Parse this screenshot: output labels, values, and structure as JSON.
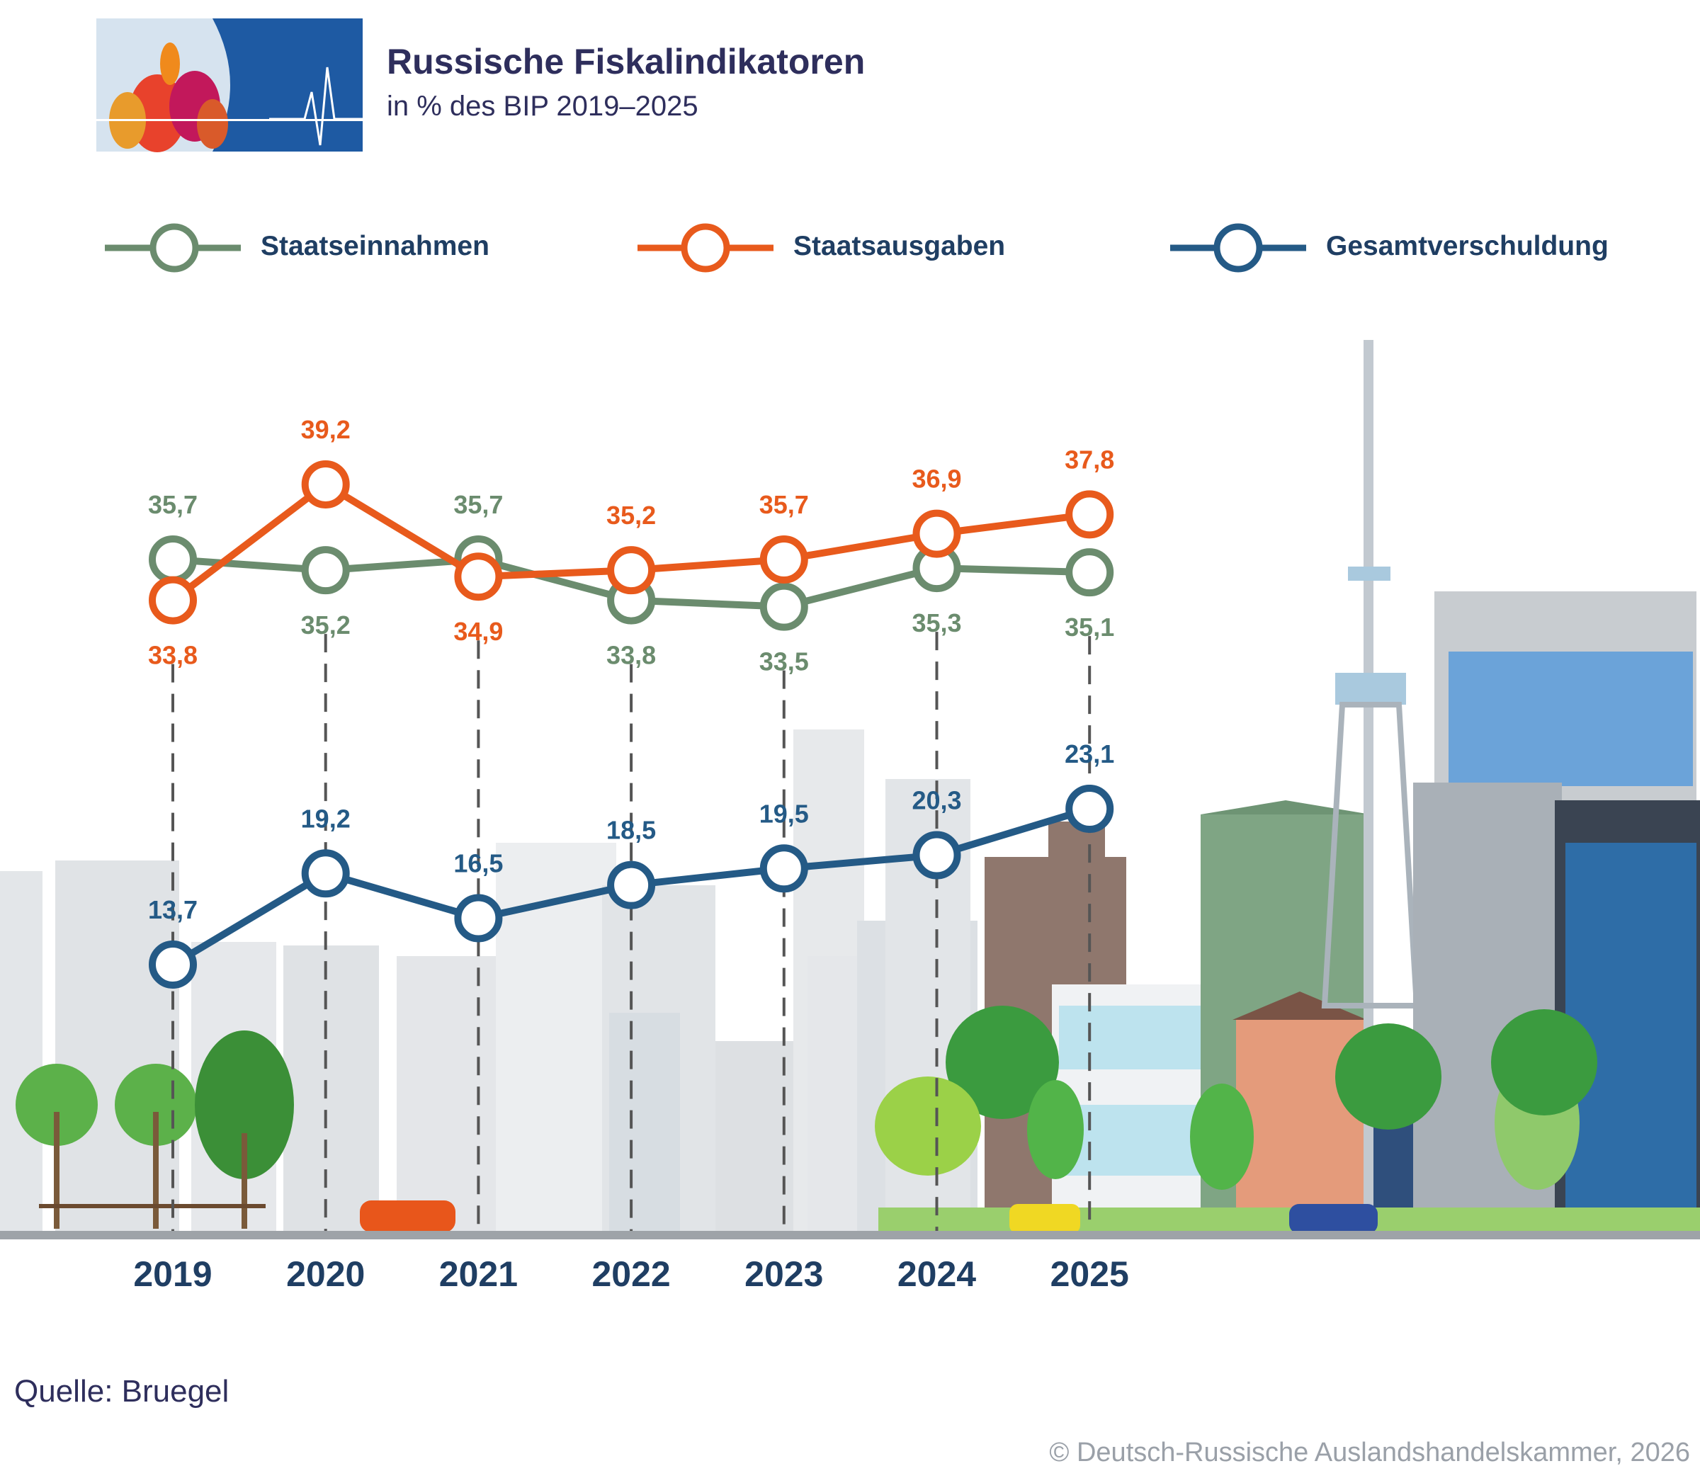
{
  "header": {
    "title": "Russische Fiskalindikatoren",
    "subtitle": "in % des BIP 2019–2025"
  },
  "legend": {
    "revenue_label": "Staatseinnahmen",
    "spending_label": "Staatsausgaben",
    "debt_label": "Gesamtverschuldung"
  },
  "footer": {
    "source": "Quelle: Bruegel",
    "copyright": "© Deutsch-Russische Auslandshandelskammer, 2026"
  },
  "colors": {
    "revenue": "#6b8c6e",
    "spending": "#e85a1c",
    "debt": "#245a86",
    "axis_year": "#1f3e63"
  },
  "chart_data": {
    "type": "line",
    "categories": [
      "2019",
      "2020",
      "2021",
      "2022",
      "2023",
      "2024",
      "2025"
    ],
    "series": [
      {
        "name": "Staatseinnahmen",
        "values": [
          35.7,
          35.2,
          35.7,
          33.8,
          33.5,
          35.3,
          35.1
        ],
        "labels": [
          "35,7",
          "35,2",
          "35,7",
          "33,8",
          "33,5",
          "35,3",
          "35,1"
        ]
      },
      {
        "name": "Staatsausgaben",
        "values": [
          33.8,
          39.2,
          34.9,
          35.2,
          35.7,
          36.9,
          37.8
        ],
        "labels": [
          "33,8",
          "39,2",
          "34,9",
          "35,2",
          "35,7",
          "36,9",
          "37,8"
        ]
      },
      {
        "name": "Gesamtverschuldung",
        "values": [
          13.7,
          19.2,
          16.5,
          18.5,
          19.5,
          20.3,
          23.1
        ],
        "labels": [
          "13,7",
          "19,2",
          "16,5",
          "18,5",
          "19,5",
          "20,3",
          "23,1"
        ]
      }
    ],
    "grid": false,
    "legend_position": "top"
  }
}
